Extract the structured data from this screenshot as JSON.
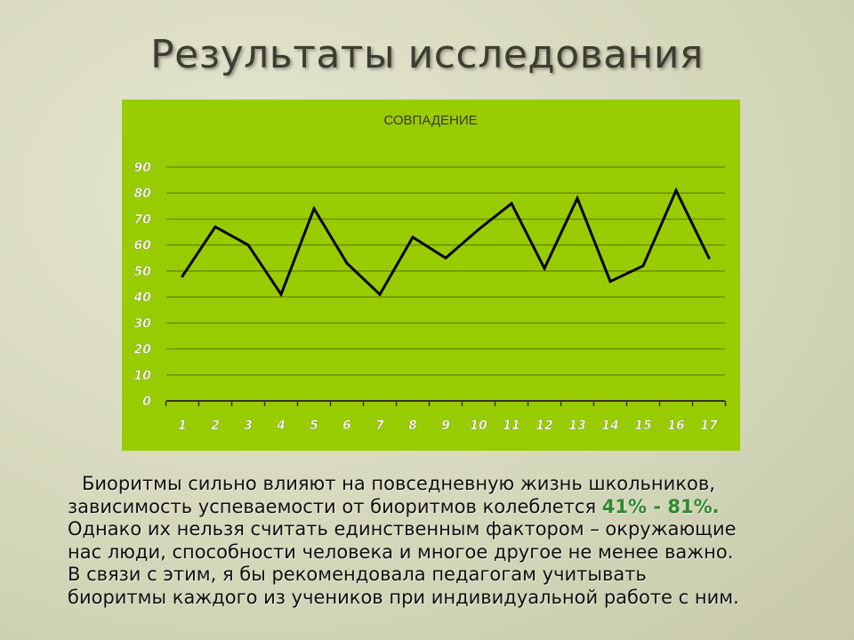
{
  "slide": {
    "title": "Результаты исследования"
  },
  "paragraph": {
    "line1": "Биоритмы сильно влияют на повседневную жизнь школьников,",
    "line2_before": "зависимость успеваемости от биоритмов колеблется ",
    "line2_highlight": "41% - 81%.",
    "line3": "Однако их нельзя считать единственным фактором – окружающие",
    "line4": "нас люди, способности человека и многое другое не менее важно.",
    "line5": "В связи с этим, я бы рекомендовала педагогам учитывать",
    "line6": "биоритмы  каждого из учеников при индивидуальной работе с ним."
  },
  "colors": {
    "chart_background": "#99cc00",
    "line": "#000000",
    "gridline": "#6a8f00",
    "highlight": "#2e8b2e"
  },
  "chart_data": {
    "type": "line",
    "title": "СОВПАДЕНИЕ",
    "categories": [
      "1",
      "2",
      "3",
      "4",
      "5",
      "6",
      "7",
      "8",
      "9",
      "10",
      "11",
      "12",
      "13",
      "14",
      "15",
      "16",
      "17"
    ],
    "values": [
      48,
      67,
      60,
      41,
      74,
      53,
      41,
      63,
      55,
      66,
      76,
      51,
      78,
      46,
      52,
      81,
      55
    ],
    "yticks": [
      "0",
      "10",
      "20",
      "30",
      "40",
      "50",
      "60",
      "70",
      "80",
      "90"
    ],
    "ylim": [
      0,
      90
    ],
    "grid": true,
    "legend": "none"
  }
}
